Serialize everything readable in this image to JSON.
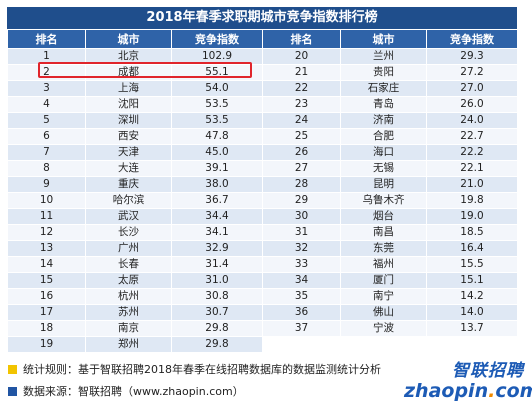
{
  "title": "2018年春季求职期城市竞争指数排行榜",
  "headers": [
    "排名",
    "城市",
    "竞争指数"
  ],
  "left_rows": [
    {
      "rank": "1",
      "city": "北京",
      "index": "102.9"
    },
    {
      "rank": "2",
      "city": "成都",
      "index": "55.1"
    },
    {
      "rank": "3",
      "city": "上海",
      "index": "54.0"
    },
    {
      "rank": "4",
      "city": "沈阳",
      "index": "53.5"
    },
    {
      "rank": "5",
      "city": "深圳",
      "index": "53.5"
    },
    {
      "rank": "6",
      "city": "西安",
      "index": "47.8"
    },
    {
      "rank": "7",
      "city": "天津",
      "index": "45.0"
    },
    {
      "rank": "8",
      "city": "大连",
      "index": "39.1"
    },
    {
      "rank": "9",
      "city": "重庆",
      "index": "38.0"
    },
    {
      "rank": "10",
      "city": "哈尔滨",
      "index": "36.7"
    },
    {
      "rank": "11",
      "city": "武汉",
      "index": "34.4"
    },
    {
      "rank": "12",
      "city": "长沙",
      "index": "34.1"
    },
    {
      "rank": "13",
      "city": "广州",
      "index": "32.9"
    },
    {
      "rank": "14",
      "city": "长春",
      "index": "31.4"
    },
    {
      "rank": "15",
      "city": "太原",
      "index": "31.0"
    },
    {
      "rank": "16",
      "city": "杭州",
      "index": "30.8"
    },
    {
      "rank": "17",
      "city": "苏州",
      "index": "30.7"
    },
    {
      "rank": "18",
      "city": "南京",
      "index": "29.8"
    },
    {
      "rank": "19",
      "city": "郑州",
      "index": "29.8"
    }
  ],
  "right_rows": [
    {
      "rank": "20",
      "city": "兰州",
      "index": "29.3"
    },
    {
      "rank": "21",
      "city": "贵阳",
      "index": "27.2"
    },
    {
      "rank": "22",
      "city": "石家庄",
      "index": "27.0"
    },
    {
      "rank": "23",
      "city": "青岛",
      "index": "26.0"
    },
    {
      "rank": "24",
      "city": "济南",
      "index": "24.0"
    },
    {
      "rank": "25",
      "city": "合肥",
      "index": "22.7"
    },
    {
      "rank": "26",
      "city": "海口",
      "index": "22.2"
    },
    {
      "rank": "27",
      "city": "无锡",
      "index": "22.1"
    },
    {
      "rank": "28",
      "city": "昆明",
      "index": "21.0"
    },
    {
      "rank": "29",
      "city": "乌鲁木齐",
      "index": "19.8"
    },
    {
      "rank": "30",
      "city": "烟台",
      "index": "19.0"
    },
    {
      "rank": "31",
      "city": "南昌",
      "index": "18.5"
    },
    {
      "rank": "32",
      "city": "东莞",
      "index": "16.4"
    },
    {
      "rank": "33",
      "city": "福州",
      "index": "15.5"
    },
    {
      "rank": "34",
      "city": "厦门",
      "index": "15.1"
    },
    {
      "rank": "35",
      "city": "南宁",
      "index": "14.2"
    },
    {
      "rank": "36",
      "city": "佛山",
      "index": "14.0"
    },
    {
      "rank": "37",
      "city": "宁波",
      "index": "13.7"
    }
  ],
  "footer": {
    "rule": "统计规则：基于智联招聘2018年春季在线招聘数据库的数据监测统计分析",
    "source": "数据来源：智联招聘（www.zhaopin.com）"
  },
  "logo": {
    "cn": "智联招聘",
    "en_main": "zhaopin",
    "en_dot": ".",
    "en_tld": "com"
  },
  "colors": {
    "title_bg": "#1f4e8c",
    "header_bg": "#2f63a8",
    "row_odd": "#dfe8f4",
    "row_even": "#f3f6fb",
    "highlight": "#e0242b",
    "rule_marker": "#f2c400",
    "source_marker": "#2155a3"
  }
}
